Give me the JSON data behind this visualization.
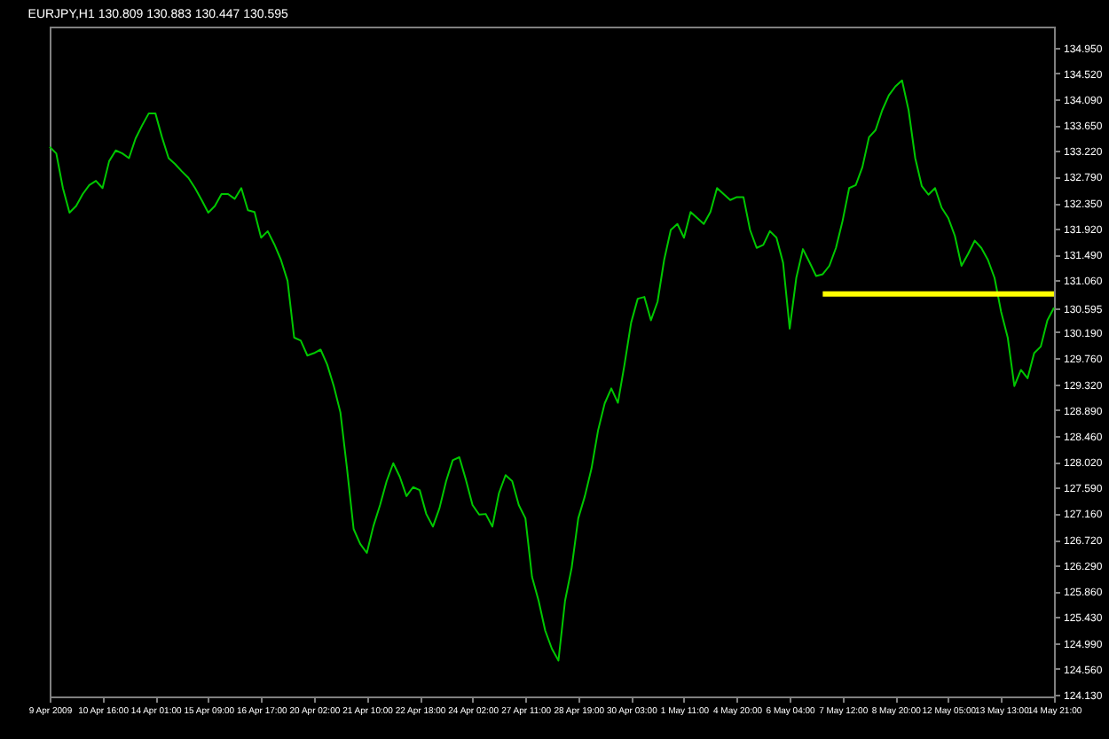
{
  "chart_data": {
    "type": "line",
    "title": "EURJPY,H1  130.809 130.883 130.447 130.595",
    "categories": [
      "9 Apr 2009",
      null,
      null,
      null,
      null,
      null,
      null,
      null,
      "10 Apr 16:00",
      null,
      null,
      null,
      null,
      null,
      null,
      null,
      "14 Apr 01:00",
      null,
      null,
      null,
      null,
      null,
      null,
      null,
      "15 Apr 09:00",
      null,
      null,
      null,
      null,
      null,
      null,
      null,
      "16 Apr 17:00",
      null,
      null,
      null,
      null,
      null,
      null,
      null,
      "20 Apr 02:00",
      null,
      null,
      null,
      null,
      null,
      null,
      null,
      "21 Apr 10:00",
      null,
      null,
      null,
      null,
      null,
      null,
      null,
      "22 Apr 18:00",
      null,
      null,
      null,
      null,
      null,
      null,
      null,
      "24 Apr 02:00",
      null,
      null,
      null,
      null,
      null,
      null,
      null,
      "27 Apr 11:00",
      null,
      null,
      null,
      null,
      null,
      null,
      null,
      "28 Apr 19:00",
      null,
      null,
      null,
      null,
      null,
      null,
      null,
      "30 Apr 03:00",
      null,
      null,
      null,
      null,
      null,
      null,
      null,
      "1 May 11:00",
      null,
      null,
      null,
      null,
      null,
      null,
      null,
      "4 May 20:00",
      null,
      null,
      null,
      null,
      null,
      null,
      null,
      "6 May 04:00",
      null,
      null,
      null,
      null,
      null,
      null,
      null,
      "7 May 12:00",
      null,
      null,
      null,
      null,
      null,
      null,
      null,
      "8 May 20:00",
      null,
      null,
      null,
      null,
      null,
      null,
      null,
      "12 May 05:00",
      null,
      null,
      null,
      null,
      null,
      null,
      null,
      "13 May 13:00",
      null,
      null,
      null,
      null,
      null,
      null,
      null,
      "14 May 21:00"
    ],
    "series": [
      {
        "color": "#00c800",
        "values": [
          133.29,
          133.18,
          132.6,
          132.19,
          132.3,
          132.5,
          132.65,
          132.72,
          132.6,
          133.05,
          133.23,
          133.18,
          133.1,
          133.43,
          133.65,
          133.85,
          133.85,
          133.45,
          133.1,
          133.0,
          132.88,
          132.77,
          132.6,
          132.4,
          132.19,
          132.3,
          132.5,
          132.5,
          132.42,
          132.6,
          132.23,
          132.2,
          131.77,
          131.88,
          131.66,
          131.4,
          131.05,
          130.1,
          130.05,
          129.8,
          129.84,
          129.9,
          129.65,
          129.29,
          128.85,
          127.91,
          126.9,
          126.65,
          126.5,
          126.95,
          127.3,
          127.7,
          128.0,
          127.77,
          127.45,
          127.6,
          127.55,
          127.15,
          126.94,
          127.25,
          127.7,
          128.05,
          128.1,
          127.72,
          127.3,
          127.14,
          127.15,
          126.94,
          127.5,
          127.8,
          127.7,
          127.3,
          127.08,
          126.1,
          125.7,
          125.2,
          124.9,
          124.7,
          125.7,
          126.25,
          127.08,
          127.45,
          127.91,
          128.55,
          129.0,
          129.25,
          129.01,
          129.65,
          130.35,
          130.75,
          130.78,
          130.39,
          130.7,
          131.4,
          131.9,
          132.0,
          131.77,
          132.2,
          132.1,
          132.0,
          132.2,
          132.6,
          132.5,
          132.4,
          132.45,
          132.45,
          131.9,
          131.6,
          131.65,
          131.88,
          131.77,
          131.35,
          130.25,
          131.1,
          131.58,
          131.36,
          131.13,
          131.16,
          131.3,
          131.6,
          132.05,
          132.6,
          132.65,
          132.95,
          133.45,
          133.57,
          133.9,
          134.15,
          134.3,
          134.4,
          133.9,
          133.1,
          132.63,
          132.49,
          132.6,
          132.27,
          132.1,
          131.8,
          131.3,
          131.5,
          131.72,
          131.6,
          131.4,
          131.1,
          130.53,
          130.1,
          129.29,
          129.56,
          129.42,
          129.84,
          129.95,
          130.39,
          130.6
        ]
      },
      {
        "type": "line",
        "color": "#ffff00",
        "values": [
          null,
          null,
          null,
          null,
          null,
          null,
          null,
          null,
          null,
          null,
          null,
          null,
          null,
          null,
          null,
          null,
          null,
          null,
          null,
          null,
          null,
          null,
          null,
          null,
          null,
          null,
          null,
          null,
          null,
          null,
          null,
          null,
          null,
          null,
          null,
          null,
          null,
          null,
          null,
          null,
          null,
          null,
          null,
          null,
          null,
          null,
          null,
          null,
          null,
          null,
          null,
          null,
          null,
          null,
          null,
          null,
          null,
          null,
          null,
          null,
          null,
          null,
          null,
          null,
          null,
          null,
          null,
          null,
          null,
          null,
          null,
          null,
          null,
          null,
          null,
          null,
          null,
          null,
          null,
          null,
          null,
          null,
          null,
          null,
          null,
          null,
          null,
          null,
          null,
          null,
          null,
          null,
          null,
          null,
          null,
          null,
          null,
          null,
          null,
          null,
          null,
          null,
          null,
          null,
          null,
          null,
          null,
          null,
          null,
          null,
          null,
          null,
          null,
          null,
          null,
          null,
          null,
          130.83,
          130.83,
          130.83,
          130.83,
          130.83,
          130.83,
          130.83,
          130.83,
          130.83,
          130.83,
          130.83,
          130.83,
          130.83,
          130.83,
          130.83,
          130.83,
          130.83,
          130.83,
          130.83,
          130.83,
          130.83,
          130.83,
          130.83,
          130.83,
          130.83,
          130.83,
          130.83,
          130.83,
          130.83,
          130.83,
          130.83,
          130.83,
          130.83,
          130.83,
          130.83,
          130.83
        ]
      }
    ],
    "ylim": [
      124.1,
      135.3
    ],
    "yticks": [
      {
        "value": 124.13,
        "label": "124.130"
      },
      {
        "value": 124.56,
        "label": "124.560"
      },
      {
        "value": 124.99,
        "label": "124.990"
      },
      {
        "value": 125.43,
        "label": "125.430"
      },
      {
        "value": 125.86,
        "label": "125.860"
      },
      {
        "value": 126.29,
        "label": "126.290"
      },
      {
        "value": 126.72,
        "label": "126.720"
      },
      {
        "value": 127.16,
        "label": "127.160"
      },
      {
        "value": 127.59,
        "label": "127.590"
      },
      {
        "value": 128.02,
        "label": "128.020"
      },
      {
        "value": 128.46,
        "label": "128.460"
      },
      {
        "value": 128.89,
        "label": "128.890"
      },
      {
        "value": 129.32,
        "label": "129.320"
      },
      {
        "value": 129.76,
        "label": "129.760"
      },
      {
        "value": 130.19,
        "label": "130.190"
      },
      {
        "value": 130.595,
        "label": "130.595"
      },
      {
        "value": 131.06,
        "label": "131.060"
      },
      {
        "value": 131.49,
        "label": "131.490"
      },
      {
        "value": 131.92,
        "label": "131.920"
      },
      {
        "value": 132.35,
        "label": "132.350"
      },
      {
        "value": 132.79,
        "label": "132.790"
      },
      {
        "value": 133.22,
        "label": "133.220"
      },
      {
        "value": 133.65,
        "label": "133.650"
      },
      {
        "value": 134.09,
        "label": "134.090"
      },
      {
        "value": 134.52,
        "label": "134.520"
      },
      {
        "value": 134.95,
        "label": "134.950"
      }
    ],
    "grid": false,
    "marker": "none"
  }
}
